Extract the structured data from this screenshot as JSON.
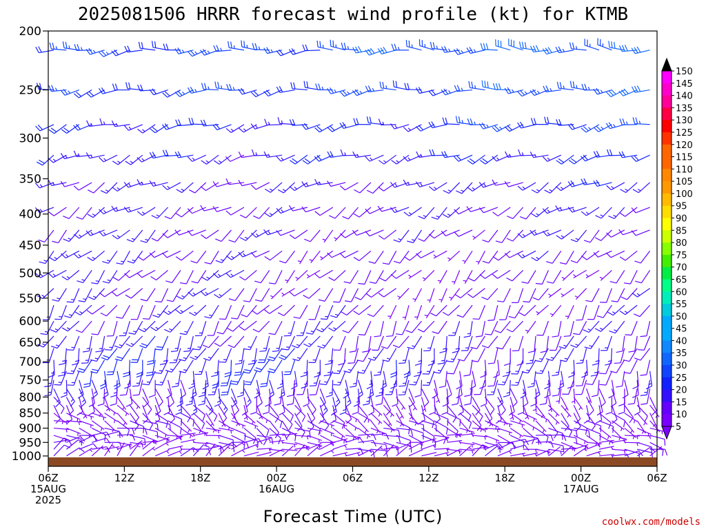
{
  "title": "2025081506 HRRR forecast wind profile (kt) for KTMB",
  "credit": "coolwx.com/models",
  "colors": {
    "ground": "#8B4A24",
    "credit": "#cc0000",
    "colorbar": [
      "#7a00ff",
      "#6600ff",
      "#3311ff",
      "#1122ff",
      "#1144ff",
      "#1166ff",
      "#1188ff",
      "#00aaff",
      "#00ccdd",
      "#00eebb",
      "#00ff88",
      "#00ee44",
      "#44ee00",
      "#88ff00",
      "#ccff00",
      "#ffff00",
      "#ffdd00",
      "#ffbb00",
      "#ff9900",
      "#ff8800",
      "#ff6600",
      "#ff3300",
      "#ff0000",
      "#ff0044",
      "#ff0099",
      "#ff00cc",
      "#ff00ff",
      "#000000"
    ]
  },
  "chart_data": {
    "type": "wind_barb_timeheight",
    "xlabel": "Forecast Time (UTC)",
    "ylabel": "",
    "x_range_hours": [
      0,
      48
    ],
    "y_range_hpa": [
      200,
      1040
    ],
    "y_scale": "log-pressure",
    "xticks": [
      {
        "hour": 0,
        "lines": [
          "06Z",
          "15AUG",
          "2025"
        ]
      },
      {
        "hour": 6,
        "lines": [
          "12Z"
        ]
      },
      {
        "hour": 12,
        "lines": [
          "18Z"
        ]
      },
      {
        "hour": 18,
        "lines": [
          "00Z",
          "16AUG"
        ]
      },
      {
        "hour": 24,
        "lines": [
          "06Z"
        ]
      },
      {
        "hour": 30,
        "lines": [
          "12Z"
        ]
      },
      {
        "hour": 36,
        "lines": [
          "18Z"
        ]
      },
      {
        "hour": 42,
        "lines": [
          "00Z",
          "17AUG"
        ]
      },
      {
        "hour": 48,
        "lines": [
          "06Z"
        ]
      }
    ],
    "yticks": [
      "200",
      "250",
      "300",
      "350",
      "400",
      "450",
      "500",
      "550",
      "600",
      "650",
      "700",
      "750",
      "800",
      "850",
      "900",
      "950",
      "1000"
    ],
    "levels_hpa": [
      215,
      250,
      285,
      320,
      355,
      390,
      425,
      460,
      495,
      530,
      565,
      600,
      635,
      665,
      695,
      725,
      750,
      775,
      800,
      825,
      850,
      875,
      900,
      925,
      950,
      975,
      1000
    ],
    "profiles": [
      {
        "level": 215,
        "dir": [
          260,
          265,
          270,
          275
        ],
        "speed": [
          22,
          24,
          26,
          30
        ]
      },
      {
        "level": 250,
        "dir": [
          255,
          260,
          265,
          260
        ],
        "speed": [
          20,
          22,
          24,
          28
        ]
      },
      {
        "level": 285,
        "dir": [
          250,
          255,
          260,
          255
        ],
        "speed": [
          18,
          18,
          20,
          24
        ]
      },
      {
        "level": 320,
        "dir": [
          245,
          250,
          250,
          250
        ],
        "speed": [
          16,
          15,
          17,
          20
        ]
      },
      {
        "level": 355,
        "dir": [
          240,
          245,
          240,
          245
        ],
        "speed": [
          15,
          12,
          14,
          17
        ]
      },
      {
        "level": 390,
        "dir": [
          235,
          240,
          235,
          240
        ],
        "speed": [
          15,
          10,
          12,
          15
        ]
      },
      {
        "level": 425,
        "dir": [
          230,
          235,
          230,
          235
        ],
        "speed": [
          15,
          10,
          10,
          13
        ]
      },
      {
        "level": 460,
        "dir": [
          225,
          230,
          225,
          230
        ],
        "speed": [
          15,
          10,
          9,
          12
        ]
      },
      {
        "level": 495,
        "dir": [
          225,
          225,
          220,
          225
        ],
        "speed": [
          14,
          10,
          8,
          10
        ]
      },
      {
        "level": 530,
        "dir": [
          220,
          225,
          215,
          220
        ],
        "speed": [
          14,
          10,
          8,
          10
        ]
      },
      {
        "level": 565,
        "dir": [
          215,
          220,
          210,
          215
        ],
        "speed": [
          14,
          11,
          9,
          10
        ]
      },
      {
        "level": 600,
        "dir": [
          210,
          215,
          205,
          210
        ],
        "speed": [
          15,
          12,
          10,
          11
        ]
      },
      {
        "level": 635,
        "dir": [
          205,
          210,
          200,
          205
        ],
        "speed": [
          16,
          14,
          11,
          12
        ]
      },
      {
        "level": 665,
        "dir": [
          200,
          205,
          195,
          200
        ],
        "speed": [
          17,
          16,
          13,
          13
        ]
      },
      {
        "level": 695,
        "dir": [
          195,
          200,
          190,
          195
        ],
        "speed": [
          18,
          18,
          14,
          14
        ]
      },
      {
        "level": 725,
        "dir": [
          185,
          190,
          185,
          190
        ],
        "speed": [
          15,
          17,
          13,
          12
        ]
      },
      {
        "level": 750,
        "dir": [
          175,
          180,
          180,
          185
        ],
        "speed": [
          12,
          15,
          12,
          10
        ]
      },
      {
        "level": 775,
        "dir": [
          165,
          170,
          170,
          175
        ],
        "speed": [
          10,
          13,
          10,
          9
        ]
      },
      {
        "level": 800,
        "dir": [
          150,
          165,
          160,
          165
        ],
        "speed": [
          9,
          12,
          9,
          8
        ]
      },
      {
        "level": 825,
        "dir": [
          140,
          150,
          150,
          155
        ],
        "speed": [
          8,
          10,
          8,
          8
        ]
      },
      {
        "level": 850,
        "dir": [
          120,
          140,
          130,
          140
        ],
        "speed": [
          7,
          8,
          7,
          7
        ]
      },
      {
        "level": 875,
        "dir": [
          110,
          130,
          120,
          130
        ],
        "speed": [
          7,
          7,
          7,
          7
        ]
      },
      {
        "level": 900,
        "dir": [
          100,
          120,
          110,
          120
        ],
        "speed": [
          8,
          7,
          7,
          8
        ]
      },
      {
        "level": 925,
        "dir": [
          90,
          100,
          100,
          110
        ],
        "speed": [
          8,
          7,
          7,
          8
        ]
      },
      {
        "level": 950,
        "dir": [
          80,
          90,
          90,
          100
        ],
        "speed": [
          8,
          6,
          7,
          7
        ]
      },
      {
        "level": 975,
        "dir": [
          60,
          80,
          80,
          90
        ],
        "speed": [
          7,
          5,
          6,
          6
        ]
      },
      {
        "level": 1000,
        "dir": [
          40,
          60,
          60,
          70
        ],
        "speed": [
          6,
          4,
          5,
          5
        ]
      }
    ],
    "colorbar": {
      "labels": [
        "150",
        "145",
        "140",
        "135",
        "130",
        "125",
        "120",
        "115",
        "110",
        "105",
        "100",
        "95",
        "90",
        "85",
        "80",
        "75",
        "70",
        "65",
        "60",
        "55",
        "50",
        "45",
        "40",
        "35",
        "30",
        "25",
        "20",
        "15",
        "10",
        "5"
      ],
      "min": 5,
      "max": 150,
      "step": 5
    }
  }
}
